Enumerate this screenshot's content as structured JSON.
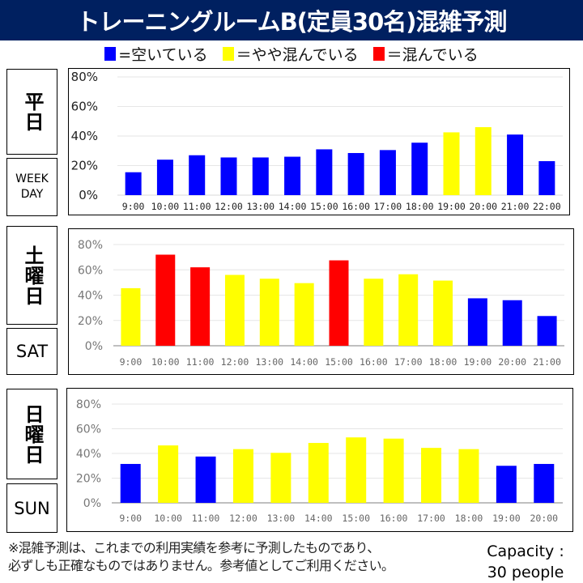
{
  "title": "トレーニングルームB(定員30名)混雑予測",
  "legend": [
    {
      "label": "=空いている",
      "color": "#0000FF"
    },
    {
      "label": "＝やや混んでいる",
      "color": "#FFFF00"
    },
    {
      "label": "＝混んでいる",
      "color": "#FF0000"
    }
  ],
  "sections": [
    {
      "jp_label": "平日",
      "en_label": "WEEK DAY"
    },
    {
      "jp_label": "土曜日",
      "en_label": "SAT"
    },
    {
      "jp_label": "日曜日",
      "en_label": "SUN"
    }
  ],
  "note_line1": "※混雑予測は、これまでの利用実績を参考に予測したものであり、",
  "note_line2": "必ずしも正確なものではありません。参考値としてご利用ください。",
  "capacity_line1": "Capacity :",
  "capacity_line2": "30 people",
  "chart_data": [
    {
      "type": "bar",
      "title": "平日 WEEK DAY",
      "categories": [
        "9:00",
        "10:00",
        "11:00",
        "12:00",
        "13:00",
        "14:00",
        "15:00",
        "16:00",
        "17:00",
        "18:00",
        "19:00",
        "20:00",
        "21:00",
        "22:00"
      ],
      "values": [
        15.5,
        24,
        27,
        25.5,
        25.5,
        26,
        31,
        28.5,
        30.5,
        35.5,
        42.5,
        46,
        41,
        23
      ],
      "colors": [
        "#0000FF",
        "#0000FF",
        "#0000FF",
        "#0000FF",
        "#0000FF",
        "#0000FF",
        "#0000FF",
        "#0000FF",
        "#0000FF",
        "#0000FF",
        "#FFFF00",
        "#FFFF00",
        "#0000FF",
        "#0000FF"
      ],
      "ylim": [
        0,
        80
      ],
      "yticks": [
        "0%",
        "20%",
        "40%",
        "60%",
        "80%"
      ],
      "grid": true
    },
    {
      "type": "bar",
      "title": "土曜日 SAT",
      "categories": [
        "9:00",
        "10:00",
        "11:00",
        "12:00",
        "13:00",
        "14:00",
        "15:00",
        "16:00",
        "17:00",
        "18:00",
        "19:00",
        "20:00",
        "21:00"
      ],
      "values": [
        45.5,
        72,
        62,
        56,
        53,
        49.5,
        67.5,
        53,
        56.5,
        51.5,
        37.5,
        36,
        23.5
      ],
      "colors": [
        "#FFFF00",
        "#FF0000",
        "#FF0000",
        "#FFFF00",
        "#FFFF00",
        "#FFFF00",
        "#FF0000",
        "#FFFF00",
        "#FFFF00",
        "#FFFF00",
        "#0000FF",
        "#0000FF",
        "#0000FF"
      ],
      "ylim": [
        0,
        80
      ],
      "yticks": [
        "0%",
        "20%",
        "40%",
        "60%",
        "80%"
      ],
      "grid": true
    },
    {
      "type": "bar",
      "title": "日曜日 SUN",
      "categories": [
        "9:00",
        "10:00",
        "11:00",
        "12:00",
        "13:00",
        "14:00",
        "15:00",
        "16:00",
        "17:00",
        "18:00",
        "19:00",
        "20:00"
      ],
      "values": [
        31.5,
        46.5,
        37.5,
        43.5,
        40.5,
        48.5,
        53,
        52,
        44.5,
        43.5,
        30,
        31.5
      ],
      "colors": [
        "#0000FF",
        "#FFFF00",
        "#0000FF",
        "#FFFF00",
        "#FFFF00",
        "#FFFF00",
        "#FFFF00",
        "#FFFF00",
        "#FFFF00",
        "#FFFF00",
        "#0000FF",
        "#0000FF"
      ],
      "ylim": [
        0,
        80
      ],
      "yticks": [
        "0%",
        "20%",
        "40%",
        "60%",
        "80%"
      ],
      "grid": true
    }
  ]
}
